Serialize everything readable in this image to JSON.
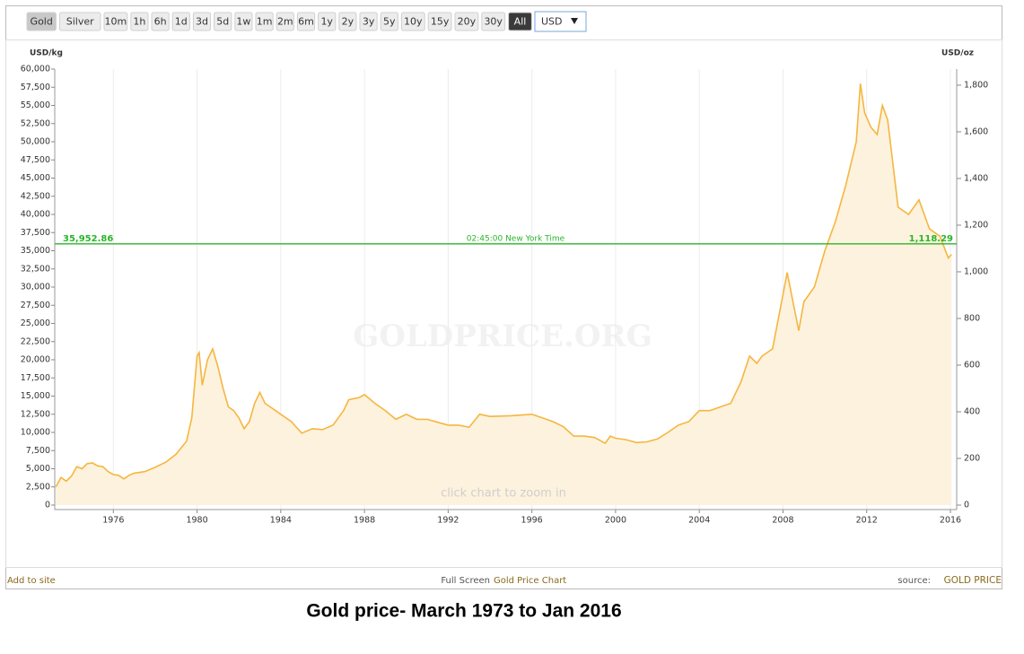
{
  "toolbar": {
    "buttons": [
      "Gold",
      "Silver",
      "10m",
      "1h",
      "6h",
      "1d",
      "3d",
      "5d",
      "1w",
      "1m",
      "2m",
      "6m",
      "1y",
      "2y",
      "3y",
      "5y",
      "10y",
      "15y",
      "20y",
      "30y",
      "All"
    ],
    "selected": [
      0,
      20
    ],
    "currency": "USD"
  },
  "chart_data": {
    "type": "area",
    "y_label": "USD/kg",
    "y2_label": "USD/oz",
    "watermark": "GOLDPRICE.ORG",
    "hint": "click chart to zoom in",
    "color": "#f5b640",
    "fill_color": "#fdf2dd",
    "grid": "x",
    "x": [
      1973.25,
      1973.5,
      1973.75,
      1974,
      1974.25,
      1974.5,
      1974.75,
      1975,
      1975.25,
      1975.5,
      1975.75,
      1976,
      1976.25,
      1976.5,
      1976.75,
      1977,
      1977.5,
      1978,
      1978.5,
      1979,
      1979.5,
      1979.75,
      1980,
      1980.1,
      1980.25,
      1980.5,
      1980.75,
      1981,
      1981.25,
      1981.5,
      1981.75,
      1982,
      1982.25,
      1982.5,
      1982.75,
      1983,
      1983.25,
      1983.5,
      1983.75,
      1984,
      1984.5,
      1985,
      1985.5,
      1986,
      1986.5,
      1987,
      1987.25,
      1987.75,
      1988,
      1988.5,
      1989,
      1989.5,
      1990,
      1990.5,
      1991,
      1991.5,
      1992,
      1992.5,
      1993,
      1993.5,
      1994,
      1995,
      1996,
      1996.5,
      1997,
      1997.5,
      1998,
      1998.5,
      1999,
      1999.5,
      1999.75,
      2000,
      2000.5,
      2001,
      2001.5,
      2002,
      2002.5,
      2003,
      2003.5,
      2004,
      2004.5,
      2005,
      2005.5,
      2006,
      2006.4,
      2006.75,
      2007,
      2007.5,
      2008,
      2008.2,
      2008.75,
      2009,
      2009.5,
      2010,
      2010.5,
      2011,
      2011.5,
      2011.7,
      2011.9,
      2012.2,
      2012.5,
      2012.75,
      2013,
      2013.5,
      2014,
      2014.5,
      2015,
      2015.5,
      2015.9,
      2016.05
    ],
    "values": [
      2500,
      3800,
      3300,
      4000,
      5300,
      5000,
      5700,
      5800,
      5400,
      5300,
      4600,
      4200,
      4100,
      3600,
      4100,
      4400,
      4600,
      5200,
      5900,
      7000,
      8800,
      12000,
      20500,
      21000,
      16500,
      20000,
      21500,
      19000,
      16000,
      13500,
      13000,
      12000,
      10500,
      11500,
      14000,
      15500,
      14000,
      13500,
      13000,
      12500,
      11500,
      9900,
      10500,
      10400,
      11000,
      13000,
      14500,
      14800,
      15200,
      14000,
      13000,
      11800,
      12500,
      11800,
      11800,
      11400,
      11000,
      11000,
      10700,
      12500,
      12200,
      12300,
      12500,
      12000,
      11500,
      10800,
      9500,
      9500,
      9300,
      8500,
      9500,
      9200,
      9000,
      8600,
      8700,
      9100,
      10000,
      11000,
      11500,
      13000,
      13000,
      13500,
      14000,
      17000,
      20500,
      19500,
      20500,
      21500,
      29000,
      32000,
      24000,
      28000,
      30000,
      35000,
      39000,
      44000,
      50000,
      58000,
      54000,
      52000,
      51000,
      55000,
      53000,
      41000,
      40000,
      42000,
      38000,
      37000,
      34000,
      34500
    ],
    "xlim": [
      1973.2,
      2016.3
    ],
    "xticks": [
      1976,
      1980,
      1984,
      1988,
      1992,
      1996,
      2000,
      2004,
      2008,
      2012,
      2016
    ],
    "ylim": [
      0,
      60000
    ],
    "yticks": [
      0,
      {
        "value": 2500,
        "label": "2,500"
      },
      {
        "value": 5000,
        "label": "5,000"
      },
      {
        "value": 7500,
        "label": "7,500"
      },
      {
        "value": 10000,
        "label": "10,000"
      },
      {
        "value": 12500,
        "label": "12,500"
      },
      {
        "value": 15000,
        "label": "15,000"
      },
      {
        "value": 17500,
        "label": "17,500"
      },
      {
        "value": 20000,
        "label": "20,000"
      },
      {
        "value": 22500,
        "label": "22,500"
      },
      {
        "value": 25000,
        "label": "25,000"
      },
      {
        "value": 27500,
        "label": "27,500"
      },
      {
        "value": 30000,
        "label": "30,000"
      },
      {
        "value": 32500,
        "label": "32,500"
      },
      {
        "value": 35000,
        "label": "35,000"
      },
      {
        "value": 37500,
        "label": "37,500"
      },
      {
        "value": 40000,
        "label": "40,000"
      },
      {
        "value": 42500,
        "label": "42,500"
      },
      {
        "value": 45000,
        "label": "45,000"
      },
      {
        "value": 47500,
        "label": "47,500"
      },
      {
        "value": 50000,
        "label": "50,000"
      },
      {
        "value": 52500,
        "label": "52,500"
      },
      {
        "value": 55000,
        "label": "55,000"
      },
      {
        "value": 57500,
        "label": "57,500"
      },
      {
        "value": 60000,
        "label": "60,000"
      }
    ],
    "y2lim": [
      0,
      1869
    ],
    "y2ticks": [
      0,
      200,
      400,
      600,
      800,
      {
        "value": 1000,
        "label": "1,000"
      },
      {
        "value": 1200,
        "label": "1,200"
      },
      {
        "value": 1400,
        "label": "1,400"
      },
      {
        "value": 1600,
        "label": "1,600"
      },
      {
        "value": 1800,
        "label": "1,800"
      }
    ],
    "current_price": {
      "value": 35952.86,
      "label": "35,952.86",
      "time": "02:45:00 New York Time",
      "value_oz": 1118.29,
      "label_oz": "1,118.29",
      "color": "#2bb52b"
    }
  },
  "footer": {
    "left": "Add to site",
    "center_prefix": "Full Screen",
    "center_link": "Gold Price Chart",
    "right_prefix": "source:",
    "right_link": "GOLD PRICE"
  },
  "caption": "Gold price- March 1973 to Jan 2016"
}
